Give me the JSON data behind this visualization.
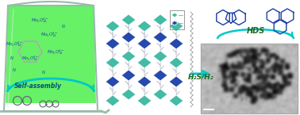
{
  "bg_color": "#ffffff",
  "arrow_color": "#00c8c8",
  "text_self_assembly": "Self-assembly",
  "text_h2s": "H₂S/H₂",
  "text_hds": "HDS",
  "crystal_blue": "#1a3faa",
  "crystal_teal": "#3ab8a0",
  "mol_color": "#1a3faa",
  "beaker_glass": "#ccddcc",
  "liquid_color": "#33ee33",
  "figsize": [
    3.78,
    1.45
  ],
  "dpi": 100
}
